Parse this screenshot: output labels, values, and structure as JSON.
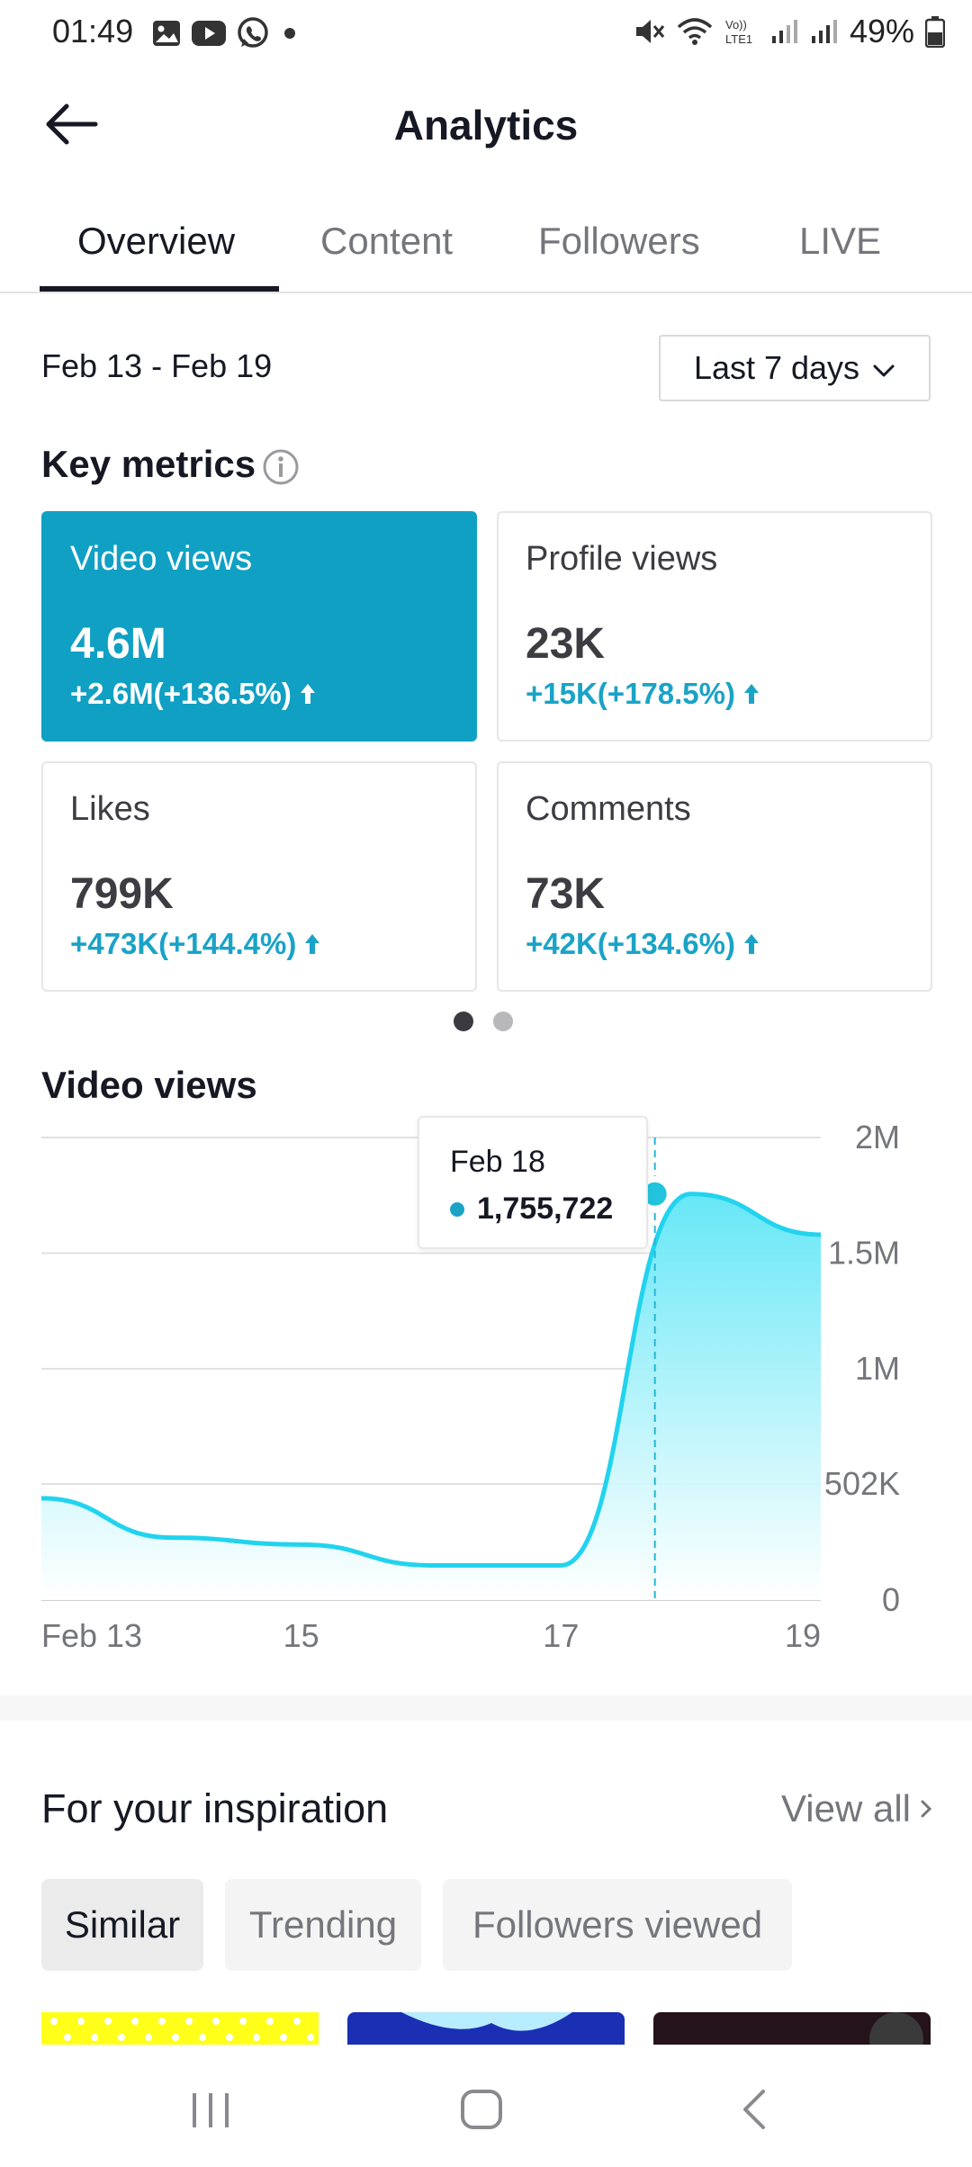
{
  "status_bar": {
    "time": "01:49",
    "battery": "49%",
    "left_icons": [
      "gallery-icon",
      "youtube-icon",
      "whatsapp-icon",
      "dot-icon"
    ],
    "right_icons": [
      "mute-icon",
      "wifi-icon",
      "volte-icon",
      "signal-icon",
      "signal-icon",
      "battery-icon"
    ]
  },
  "header": {
    "title": "Analytics",
    "back_icon": "arrow-left-icon"
  },
  "tabs": [
    {
      "label": "Overview",
      "active": true
    },
    {
      "label": "Content",
      "active": false
    },
    {
      "label": "Followers",
      "active": false
    },
    {
      "label": "LIVE",
      "active": false
    }
  ],
  "date_range": "Feb 13 - Feb 19",
  "period_dropdown": {
    "label": "Last 7 days",
    "icon": "chevron-down-icon"
  },
  "key_metrics": {
    "title": "Key metrics",
    "cards": [
      {
        "label": "Video views",
        "value": "4.6M",
        "change": "+2.6M(+136.5%)",
        "active": true
      },
      {
        "label": "Profile views",
        "value": "23K",
        "change": "+15K(+178.5%)",
        "active": false
      },
      {
        "label": "Likes",
        "value": "799K",
        "change": "+473K(+144.4%)",
        "active": false
      },
      {
        "label": "Comments",
        "value": "73K",
        "change": "+42K(+134.6%)",
        "active": false
      }
    ],
    "pages": 2,
    "current_page": 1
  },
  "video_views_section": {
    "title": "Video views",
    "tooltip": {
      "date": "Feb 18",
      "value": "1,755,722"
    }
  },
  "chart_data": {
    "type": "area",
    "x": [
      "Feb 13",
      "14",
      "15",
      "16",
      "17",
      "18",
      "19"
    ],
    "values": [
      440000,
      270000,
      240000,
      150000,
      150000,
      1755722,
      1580000
    ],
    "x_tick_labels": [
      "Feb 13",
      "15",
      "17",
      "19"
    ],
    "y_tick_labels": [
      "0",
      "502K",
      "1M",
      "1.5M",
      "2M"
    ],
    "y_ticks": [
      0,
      502000,
      1000000,
      1500000,
      2000000
    ],
    "ylim": [
      0,
      2000000
    ],
    "highlight_index": 5,
    "grid": true,
    "colors": {
      "line": "#22d3ee",
      "fill_top": "#5ee6f6",
      "fill_bottom": "#ffffff",
      "marker": "#22c4dd"
    }
  },
  "inspiration": {
    "title": "For your inspiration",
    "view_all": "View all",
    "chips": [
      {
        "label": "Similar",
        "active": true
      },
      {
        "label": "Trending",
        "active": false
      },
      {
        "label": "Followers viewed",
        "active": false
      }
    ]
  },
  "nav_bar": {
    "buttons": [
      "recent-apps-icon",
      "home-icon",
      "back-icon"
    ]
  },
  "colors": {
    "accent": "#10a0c4",
    "accent_text": "#1aa3c6",
    "text": "#161823",
    "muted": "#75767b"
  }
}
